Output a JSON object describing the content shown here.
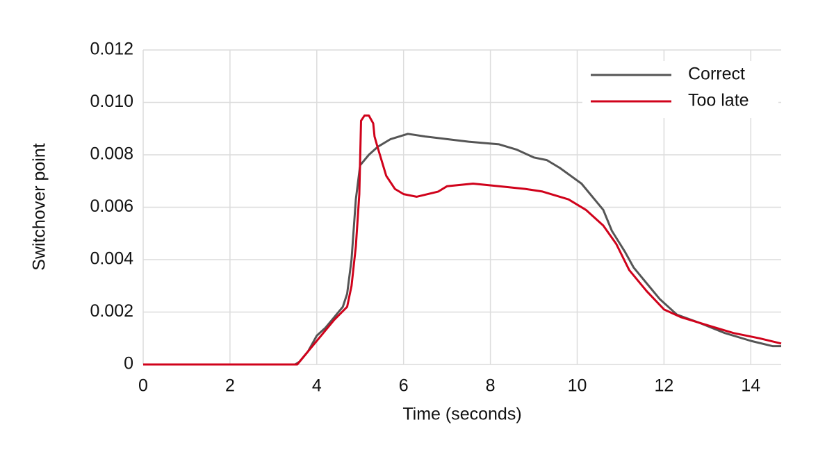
{
  "chart_data": {
    "type": "line",
    "xlabel": "Time (seconds)",
    "ylabel": "Switchover point",
    "xlim": [
      0,
      14.7
    ],
    "xticks": [
      0,
      2,
      4,
      6,
      8,
      10,
      12,
      14
    ],
    "ylim": [
      0,
      0.012
    ],
    "yticks": [
      0,
      0.002,
      0.004,
      0.006,
      0.008,
      {
        "value": 0.01,
        "label": "0.010"
      },
      0.012
    ],
    "grid": true,
    "legend": "upper right",
    "series": [
      {
        "name": "Correct",
        "color": "#555555",
        "x": [
          0,
          3.5,
          3.6,
          3.8,
          4.0,
          4.2,
          4.4,
          4.6,
          4.7,
          4.8,
          4.9,
          5.0,
          5.2,
          5.4,
          5.7,
          6.1,
          6.5,
          7.0,
          7.5,
          8.2,
          8.6,
          9.0,
          9.3,
          9.6,
          10.1,
          10.6,
          10.8,
          11.1,
          11.3,
          11.6,
          11.9,
          12.3,
          12.8,
          13.4,
          14.0,
          14.5,
          14.7
        ],
        "values": [
          0,
          0,
          0.0001,
          0.0005,
          0.0011,
          0.0014,
          0.0018,
          0.0022,
          0.0027,
          0.004,
          0.0063,
          0.0076,
          0.008,
          0.0083,
          0.0086,
          0.0088,
          0.0087,
          0.0086,
          0.0085,
          0.0084,
          0.0082,
          0.0079,
          0.0078,
          0.0075,
          0.0069,
          0.0059,
          0.0051,
          0.0043,
          0.0037,
          0.0031,
          0.0025,
          0.0019,
          0.0016,
          0.0012,
          0.0009,
          0.0007,
          0.0007
        ]
      },
      {
        "name": "Too late",
        "color": "#d0021b",
        "x": [
          0,
          3.55,
          3.8,
          4.0,
          4.2,
          4.4,
          4.7,
          4.8,
          4.9,
          4.98,
          5.02,
          5.1,
          5.2,
          5.3,
          5.33,
          5.4,
          5.6,
          5.8,
          6.0,
          6.3,
          6.8,
          7.0,
          7.6,
          8.2,
          8.8,
          9.2,
          9.8,
          10.2,
          10.6,
          10.9,
          11.2,
          11.6,
          12.0,
          12.4,
          13.0,
          13.6,
          14.2,
          14.7
        ],
        "values": [
          0,
          0,
          0.0005,
          0.0009,
          0.0013,
          0.0017,
          0.0022,
          0.003,
          0.0045,
          0.0065,
          0.0093,
          0.0095,
          0.0095,
          0.0092,
          0.0087,
          0.0083,
          0.0072,
          0.0067,
          0.0065,
          0.0064,
          0.0066,
          0.0068,
          0.0069,
          0.0068,
          0.0067,
          0.0066,
          0.0063,
          0.0059,
          0.0053,
          0.0046,
          0.0036,
          0.0028,
          0.0021,
          0.0018,
          0.0015,
          0.0012,
          0.001,
          0.0008
        ]
      }
    ]
  }
}
